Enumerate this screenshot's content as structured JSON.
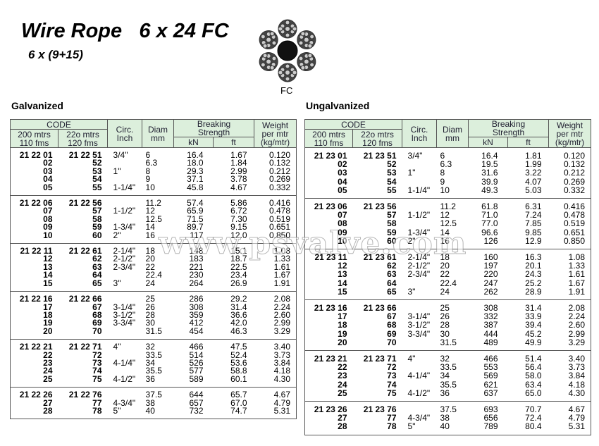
{
  "header": {
    "title": "Wire Rope   6 x 24 FC",
    "subtitle": "6 x (9+15)",
    "figure_label": "FC"
  },
  "watermark": "www.psvalve.com",
  "tables": [
    {
      "label": "Galvanized",
      "headers": {
        "code": "CODE",
        "code1": "200 mtrs\n110 fms",
        "code2": "22o mtrs\n120 fms",
        "circ": "Circ.\nInch",
        "diam": "Diam\nmm",
        "strength": "Breaking\nStrength",
        "kn": "kN",
        "ft": "ft",
        "weight": "Weight\nper mtr\n(kg/mtr)"
      },
      "groups": [
        [
          [
            "21 22 01",
            "21 22 51",
            "3/4\"",
            "6",
            "16.4",
            "1.67",
            "0.120"
          ],
          [
            "02",
            "52",
            null,
            "6.3",
            "18.0",
            "1.84",
            "0.132"
          ],
          [
            "03",
            "53",
            "1\"",
            "8",
            "29.3",
            "2.99",
            "0.212"
          ],
          [
            "04",
            "54",
            null,
            "9",
            "37.1",
            "3.78",
            "0.269"
          ],
          [
            "05",
            "55",
            "1-1/4\"",
            "10",
            "45.8",
            "4.67",
            "0.332"
          ]
        ],
        [
          [
            "21 22 06",
            "21 22 56",
            null,
            "11.2",
            "57.4",
            "5.86",
            "0.416"
          ],
          [
            "07",
            "57",
            "1-1/2\"",
            "12",
            "65.9",
            "6.72",
            "0.478"
          ],
          [
            "08",
            "58",
            null,
            "12.5",
            "71.5",
            "7.30",
            "0.519"
          ],
          [
            "09",
            "59",
            "1-3/4\"",
            "14",
            "89.7",
            "9.15",
            "0.651"
          ],
          [
            "10",
            "60",
            "2\"",
            "16",
            "117",
            "12.0",
            "0.850"
          ]
        ],
        [
          [
            "21 22 11",
            "21 22 61",
            "2-1/4\"",
            "18",
            "148",
            "15.1",
            "1.08"
          ],
          [
            "12",
            "62",
            "2-1/2\"",
            "20",
            "183",
            "18.7",
            "1.33"
          ],
          [
            "13",
            "63",
            "2-3/4\"",
            "22",
            "221",
            "22.5",
            "1.61"
          ],
          [
            "14",
            "64",
            null,
            "22.4",
            "230",
            "23.4",
            "1.67"
          ],
          [
            "15",
            "65",
            "3\"",
            "24",
            "264",
            "26.9",
            "1.91"
          ]
        ],
        [
          [
            "21 22 16",
            "21 22 66",
            null,
            "25",
            "286",
            "29.2",
            "2.08"
          ],
          [
            "17",
            "67",
            "3-1/4\"",
            "26",
            "308",
            "31.4",
            "2.24"
          ],
          [
            "18",
            "68",
            "3-1/2\"",
            "28",
            "359",
            "36.6",
            "2.60"
          ],
          [
            "19",
            "69",
            "3-3/4\"",
            "30",
            "412",
            "42.0",
            "2.99"
          ],
          [
            "20",
            "70",
            null,
            "31.5",
            "454",
            "46.3",
            "3.29"
          ]
        ],
        [
          [
            "21 22 21",
            "21 22 71",
            "4\"",
            "32",
            "466",
            "47.5",
            "3.40"
          ],
          [
            "22",
            "72",
            null,
            "33.5",
            "514",
            "52.4",
            "3.73"
          ],
          [
            "23",
            "73",
            "4-1/4\"",
            "34",
            "526",
            "53.6",
            "3.84"
          ],
          [
            "24",
            "74",
            null,
            "35.5",
            "577",
            "58.8",
            "4.18"
          ],
          [
            "25",
            "75",
            "4-1/2\"",
            "36",
            "589",
            "60.1",
            "4.30"
          ]
        ],
        [
          [
            "21 22 26",
            "21 22 76",
            null,
            "37.5",
            "644",
            "65.7",
            "4.67"
          ],
          [
            "27",
            "77",
            "4-3/4\"",
            "38",
            "657",
            "67.0",
            "4.79"
          ],
          [
            "28",
            "78",
            "5\"",
            "40",
            "732",
            "74.7",
            "5.31"
          ]
        ]
      ]
    },
    {
      "label": "Ungalvanized",
      "headers": {
        "code": "CODE",
        "code1": "200 mtrs\n110 fms",
        "code2": "22o mtrs\n120 fms",
        "circ": "Circ.\nInch",
        "diam": "Diam\nmm",
        "strength": "Breaking\nStrength",
        "kn": "kN",
        "ft": "ft",
        "weight": "Weight\nper mtr\n(kg/mtr)"
      },
      "groups": [
        [
          [
            "21 23 01",
            "21 23 51",
            "3/4\"",
            "6",
            "16.4",
            "1.81",
            "0.120"
          ],
          [
            "02",
            "52",
            null,
            "6.3",
            "19.5",
            "1.99",
            "0.132"
          ],
          [
            "03",
            "53",
            "1\"",
            "8",
            "31.6",
            "3.22",
            "0.212"
          ],
          [
            "04",
            "54",
            null,
            "9",
            "39.9",
            "4.07",
            "0.269"
          ],
          [
            "05",
            "55",
            "1-1/4\"",
            "10",
            "49.3",
            "5.03",
            "0.332"
          ]
        ],
        [
          [
            "21 23 06",
            "21 23 56",
            null,
            "11.2",
            "61.8",
            "6.31",
            "0.416"
          ],
          [
            "07",
            "57",
            "1-1/2\"",
            "12",
            "71.0",
            "7.24",
            "0.478"
          ],
          [
            "08",
            "58",
            null,
            "12.5",
            "77.0",
            "7.85",
            "0.519"
          ],
          [
            "09",
            "59",
            "1-3/4\"",
            "14",
            "96.6",
            "9.85",
            "0.651"
          ],
          [
            "10",
            "60",
            "2\"",
            "16",
            "126",
            "12.9",
            "0.850"
          ]
        ],
        [
          [
            "21 23 11",
            "21 23 61",
            "2-1/4\"",
            "18",
            "160",
            "16.3",
            "1.08"
          ],
          [
            "12",
            "62",
            "2-1/2\"",
            "20",
            "197",
            "20.1",
            "1.33"
          ],
          [
            "13",
            "63",
            "2-3/4\"",
            "22",
            "220",
            "24.3",
            "1.61"
          ],
          [
            "14",
            "64",
            null,
            "22.4",
            "247",
            "25.2",
            "1.67"
          ],
          [
            "15",
            "65",
            "3\"",
            "24",
            "262",
            "28.9",
            "1.91"
          ]
        ],
        [
          [
            "21 23 16",
            "21 23 66",
            null,
            "25",
            "308",
            "31.4",
            "2.08"
          ],
          [
            "17",
            "67",
            "3-1/4\"",
            "26",
            "332",
            "33.9",
            "2.24"
          ],
          [
            "18",
            "68",
            "3-1/2\"",
            "28",
            "387",
            "39.4",
            "2.60"
          ],
          [
            "19",
            "69",
            "3-3/4\"",
            "30",
            "444",
            "45.2",
            "2.99"
          ],
          [
            "20",
            "70",
            null,
            "31.5",
            "489",
            "49.9",
            "3.29"
          ]
        ],
        [
          [
            "21 23 21",
            "21 23 71",
            "4\"",
            "32",
            "466",
            "51.4",
            "3.40"
          ],
          [
            "22",
            "72",
            null,
            "33.5",
            "553",
            "56.4",
            "3.73"
          ],
          [
            "23",
            "73",
            "4-1/4\"",
            "34",
            "569",
            "58.0",
            "3.84"
          ],
          [
            "24",
            "74",
            null,
            "35.5",
            "621",
            "63.4",
            "4.18"
          ],
          [
            "25",
            "75",
            "4-1/2\"",
            "36",
            "637",
            "65.0",
            "4.30"
          ]
        ],
        [
          [
            "21 23 26",
            "21 23 76",
            null,
            "37.5",
            "693",
            "70.7",
            "4.67"
          ],
          [
            "27",
            "77",
            "4-3/4\"",
            "38",
            "656",
            "72.4",
            "4.79"
          ],
          [
            "28",
            "78",
            "5\"",
            "40",
            "789",
            "80.4",
            "5.31"
          ]
        ]
      ]
    }
  ]
}
